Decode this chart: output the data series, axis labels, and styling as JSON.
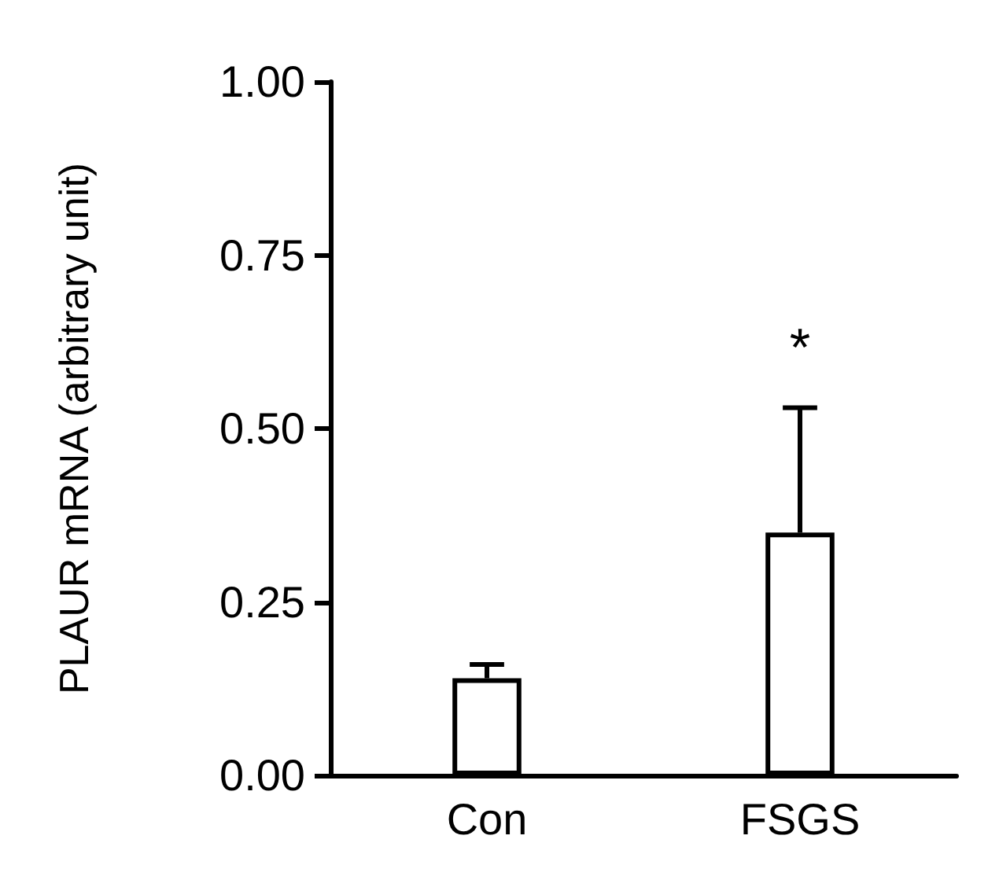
{
  "chart_data": {
    "type": "bar",
    "ylabel": "PLAUR mRNA (arbitrary unit)",
    "categories": [
      "Con",
      "FSGS"
    ],
    "values": [
      0.14,
      0.35
    ],
    "color": "#ffffff",
    "errors": [
      [
        0.14,
        0.16
      ],
      [
        0.35,
        0.53
      ]
    ],
    "ylim": [
      0,
      1
    ],
    "yticks": [
      {
        "value": 0,
        "label": "0.00"
      },
      {
        "value": 0.25,
        "label": "0.25"
      },
      {
        "value": 0.5,
        "label": "0.50"
      },
      {
        "value": 0.75,
        "label": "0.75"
      },
      {
        "value": 1,
        "label": "1.00"
      }
    ],
    "annotations": [
      "*"
    ],
    "grid": false
  }
}
